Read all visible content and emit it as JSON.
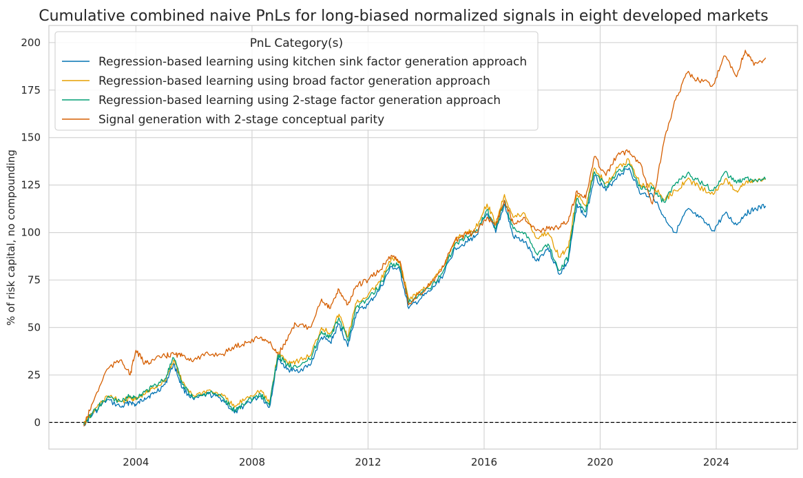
{
  "chart_data": {
    "type": "line",
    "title": "Cumulative combined naive PnLs for long-biased normalized signals in eight developed markets",
    "xlabel": "",
    "ylabel": "% of risk capital, no compounding",
    "xlim": [
      2001.0,
      2026.8
    ],
    "ylim": [
      -14,
      209
    ],
    "x_ticks": [
      2004,
      2008,
      2012,
      2016,
      2020,
      2024
    ],
    "x_tick_labels": [
      "2004",
      "2008",
      "2012",
      "2016",
      "2020",
      "2024"
    ],
    "y_ticks": [
      0,
      25,
      50,
      75,
      100,
      125,
      150,
      175,
      200
    ],
    "y_tick_labels": [
      "0",
      "25",
      "50",
      "75",
      "100",
      "125",
      "150",
      "175",
      "200"
    ],
    "grid": true,
    "zero_line": {
      "value": 0,
      "style": "dashed",
      "color": "#000000"
    },
    "legend": {
      "title": "PnL Category(s)",
      "position": "top-left"
    },
    "series": [
      {
        "name": "Regression-based learning using kitchen sink factor generation approach",
        "color": "#0072B2",
        "x": [
          2002.2,
          2002.5,
          2003.0,
          2003.5,
          2003.8,
          2004.0,
          2004.3,
          2004.6,
          2005.0,
          2005.3,
          2005.6,
          2006.0,
          2006.5,
          2007.0,
          2007.4,
          2007.8,
          2008.3,
          2008.6,
          2008.9,
          2009.2,
          2009.5,
          2010.0,
          2010.4,
          2010.7,
          2011.0,
          2011.3,
          2011.6,
          2012.0,
          2012.4,
          2012.8,
          2013.1,
          2013.4,
          2013.8,
          2014.2,
          2014.6,
          2015.0,
          2015.4,
          2015.7,
          2016.1,
          2016.4,
          2016.7,
          2017.0,
          2017.4,
          2017.8,
          2018.2,
          2018.6,
          2018.9,
          2019.2,
          2019.5,
          2019.8,
          2020.2,
          2020.6,
          2021.0,
          2021.4,
          2021.8,
          2022.2,
          2022.6,
          2023.0,
          2023.4,
          2023.9,
          2024.3,
          2024.7,
          2025.0,
          2025.3,
          2025.7
        ],
        "values": [
          -1,
          4,
          12,
          8,
          11,
          9,
          13,
          15,
          20,
          31,
          18,
          12,
          15,
          12,
          5,
          10,
          14,
          8,
          34,
          28,
          27,
          30,
          45,
          42,
          52,
          40,
          58,
          62,
          70,
          82,
          80,
          60,
          65,
          70,
          78,
          92,
          95,
          98,
          110,
          100,
          115,
          98,
          95,
          85,
          92,
          78,
          85,
          115,
          108,
          130,
          122,
          130,
          134,
          120,
          120,
          108,
          100,
          112,
          108,
          101,
          110,
          104,
          110,
          112,
          114
        ]
      },
      {
        "name": "Regression-based learning using broad factor generation approach",
        "color": "#E69F00",
        "x": [
          2002.2,
          2002.5,
          2003.0,
          2003.5,
          2003.8,
          2004.0,
          2004.3,
          2004.6,
          2005.0,
          2005.3,
          2005.6,
          2006.0,
          2006.5,
          2007.0,
          2007.4,
          2007.8,
          2008.3,
          2008.6,
          2008.9,
          2009.2,
          2009.5,
          2010.0,
          2010.4,
          2010.7,
          2011.0,
          2011.3,
          2011.6,
          2012.0,
          2012.4,
          2012.8,
          2013.1,
          2013.4,
          2013.8,
          2014.2,
          2014.6,
          2015.0,
          2015.4,
          2015.7,
          2016.1,
          2016.4,
          2016.7,
          2017.0,
          2017.4,
          2017.8,
          2018.2,
          2018.6,
          2018.9,
          2019.2,
          2019.5,
          2019.8,
          2020.2,
          2020.6,
          2021.0,
          2021.4,
          2021.8,
          2022.2,
          2022.6,
          2023.0,
          2023.4,
          2023.9,
          2024.3,
          2024.7,
          2025.0,
          2025.3,
          2025.7
        ],
        "values": [
          -1,
          5,
          14,
          11,
          13,
          12,
          15,
          18,
          22,
          33,
          21,
          14,
          17,
          14,
          8,
          13,
          17,
          10,
          37,
          32,
          32,
          35,
          50,
          47,
          57,
          45,
          63,
          67,
          74,
          86,
          84,
          65,
          69,
          74,
          82,
          96,
          100,
          102,
          115,
          105,
          120,
          108,
          110,
          97,
          100,
          87,
          92,
          120,
          114,
          134,
          126,
          134,
          138,
          125,
          125,
          117,
          122,
          128,
          124,
          120,
          128,
          122,
          126,
          127,
          128
        ]
      },
      {
        "name": "Regression-based learning using 2-stage factor generation approach",
        "color": "#009E73",
        "x": [
          2002.2,
          2002.5,
          2003.0,
          2003.5,
          2003.8,
          2004.0,
          2004.3,
          2004.6,
          2005.0,
          2005.3,
          2005.6,
          2006.0,
          2006.5,
          2007.0,
          2007.4,
          2007.8,
          2008.3,
          2008.6,
          2008.9,
          2009.2,
          2009.5,
          2010.0,
          2010.4,
          2010.7,
          2011.0,
          2011.3,
          2011.6,
          2012.0,
          2012.4,
          2012.8,
          2013.1,
          2013.4,
          2013.8,
          2014.2,
          2014.6,
          2015.0,
          2015.4,
          2015.7,
          2016.1,
          2016.4,
          2016.7,
          2017.0,
          2017.4,
          2017.8,
          2018.2,
          2018.6,
          2018.9,
          2019.2,
          2019.5,
          2019.8,
          2020.2,
          2020.6,
          2021.0,
          2021.4,
          2021.8,
          2022.2,
          2022.6,
          2023.0,
          2023.4,
          2023.9,
          2024.3,
          2024.7,
          2025.0,
          2025.3,
          2025.7
        ],
        "values": [
          -1,
          5,
          13,
          11,
          14,
          13,
          16,
          19,
          23,
          34,
          20,
          13,
          16,
          13,
          6,
          11,
          15,
          9,
          36,
          30,
          30,
          33,
          48,
          45,
          55,
          43,
          61,
          65,
          72,
          84,
          82,
          63,
          67,
          72,
          80,
          94,
          98,
          100,
          112,
          102,
          117,
          102,
          100,
          89,
          94,
          80,
          87,
          118,
          111,
          132,
          124,
          132,
          136,
          123,
          123,
          116,
          126,
          131,
          127,
          122,
          132,
          126,
          129,
          127,
          128
        ]
      },
      {
        "name": "Signal generation with 2-stage conceptual parity",
        "color": "#D55E00",
        "x": [
          2002.2,
          2002.5,
          2003.0,
          2003.5,
          2003.8,
          2004.0,
          2004.3,
          2004.6,
          2005.0,
          2005.3,
          2005.6,
          2006.0,
          2006.5,
          2007.0,
          2007.4,
          2007.8,
          2008.3,
          2008.6,
          2008.9,
          2009.2,
          2009.5,
          2010.0,
          2010.4,
          2010.7,
          2011.0,
          2011.3,
          2011.6,
          2012.0,
          2012.4,
          2012.8,
          2013.1,
          2013.4,
          2013.8,
          2014.2,
          2014.6,
          2015.0,
          2015.4,
          2015.7,
          2016.1,
          2016.4,
          2016.7,
          2017.0,
          2017.4,
          2017.8,
          2018.2,
          2018.6,
          2018.9,
          2019.2,
          2019.5,
          2019.8,
          2020.2,
          2020.6,
          2021.0,
          2021.4,
          2021.8,
          2022.2,
          2022.6,
          2023.0,
          2023.4,
          2023.9,
          2024.3,
          2024.7,
          2025.0,
          2025.3,
          2025.7
        ],
        "values": [
          -2,
          10,
          28,
          33,
          25,
          38,
          31,
          33,
          35,
          36,
          35,
          33,
          36,
          36,
          40,
          42,
          45,
          42,
          36,
          43,
          52,
          50,
          65,
          60,
          70,
          62,
          72,
          75,
          80,
          88,
          85,
          62,
          68,
          74,
          82,
          96,
          99,
          100,
          108,
          104,
          117,
          105,
          108,
          101,
          102,
          103,
          106,
          122,
          118,
          140,
          130,
          141,
          143,
          136,
          115,
          148,
          170,
          184,
          180,
          178,
          193,
          182,
          196,
          188,
          192
        ]
      }
    ]
  }
}
